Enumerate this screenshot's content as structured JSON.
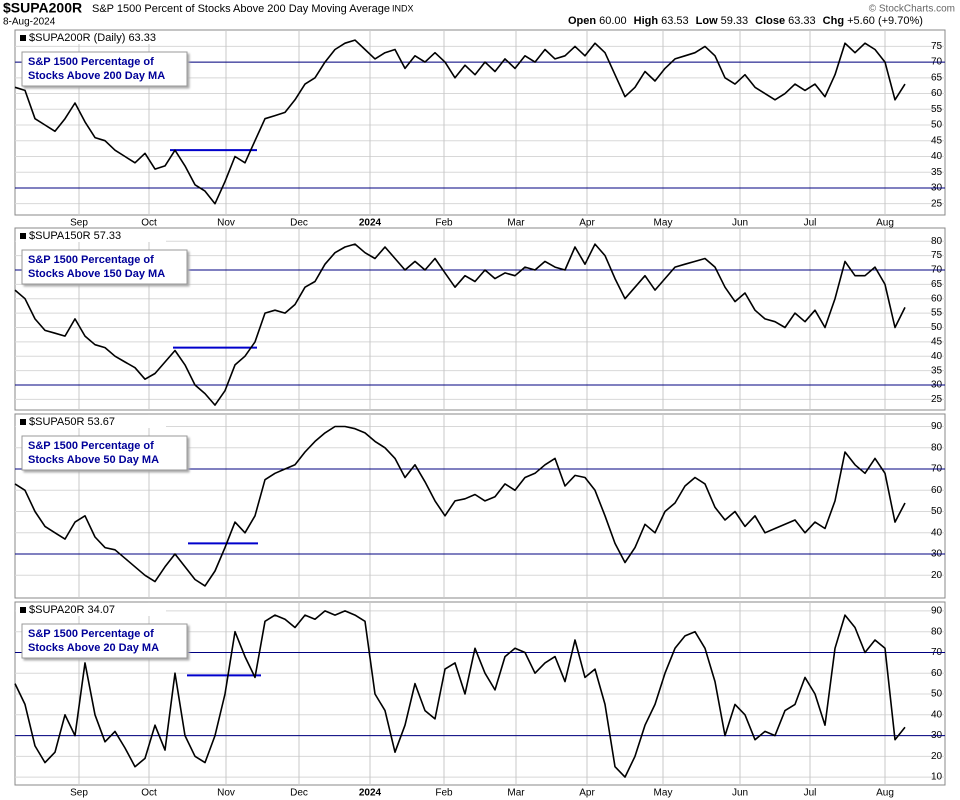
{
  "header": {
    "symbol": "$SUPA200R",
    "name": "S&P 1500 Percent of Stocks Above 200 Day Moving Average",
    "exchange": "INDX",
    "date": "8-Aug-2024",
    "quote": [
      {
        "label": "Open",
        "value": "60.00"
      },
      {
        "label": "High",
        "value": "63.53"
      },
      {
        "label": "Low",
        "value": "59.33"
      },
      {
        "label": "Close",
        "value": "63.33"
      },
      {
        "label": "Chg",
        "value": "+5.60 (+9.70%)"
      }
    ],
    "credit": "© StockCharts.com"
  },
  "chart_data": [
    {
      "type": "line",
      "label": "$SUPA200R (Daily) 63.33",
      "legend": [
        "S&P 1500 Percentage of",
        "Stocks Above 200 Day MA"
      ],
      "color": "#000000",
      "values": [
        62,
        61,
        52,
        50,
        48,
        52,
        57,
        51,
        46,
        45,
        42,
        40,
        38,
        41,
        36,
        37,
        42,
        37,
        31,
        29,
        25,
        32,
        40,
        38,
        45,
        52,
        53,
        54,
        58,
        63,
        65,
        70,
        74,
        76,
        77,
        74,
        71,
        73,
        74,
        68,
        72,
        70,
        73,
        70,
        65,
        69,
        66,
        70,
        67,
        71,
        68,
        72,
        70,
        74,
        71,
        72,
        75,
        72,
        76,
        73,
        66,
        59,
        62,
        67,
        64,
        68,
        71,
        72,
        73,
        75,
        72,
        65,
        63,
        66,
        62,
        60,
        58,
        60,
        63,
        61,
        63,
        59,
        66,
        76,
        73,
        76,
        74,
        70,
        58,
        63
      ],
      "xlim": [
        0,
        90
      ],
      "ylim": [
        21.4,
        80.2
      ],
      "yticks": [
        25,
        30,
        35,
        40,
        45,
        50,
        55,
        60,
        65,
        70,
        75
      ],
      "xticks": [
        {
          "value": 6.4,
          "label": "Sep"
        },
        {
          "value": 13.4,
          "label": "Oct"
        },
        {
          "value": 21.1,
          "label": "Nov"
        },
        {
          "value": 28.4,
          "label": "Dec"
        },
        {
          "value": 35.5,
          "label": "2024"
        },
        {
          "value": 42.9,
          "label": "Feb"
        },
        {
          "value": 50.1,
          "label": "Mar"
        },
        {
          "value": 57.2,
          "label": "Apr"
        },
        {
          "value": 64.8,
          "label": "May"
        },
        {
          "value": 72.5,
          "label": "Jun"
        },
        {
          "value": 79.5,
          "label": "Jul"
        },
        {
          "value": 87.0,
          "label": "Aug"
        }
      ],
      "xtick_labels": true,
      "reference_lines": [
        30,
        70
      ],
      "segment": {
        "y": 42,
        "x": [
          15.5,
          24.2
        ]
      },
      "grid": true
    },
    {
      "type": "line",
      "label": "$SUPA150R 57.33",
      "legend": [
        "S&P 1500 Percentage of",
        "Stocks Above 150 Day MA"
      ],
      "color": "#000000",
      "values": [
        63,
        60,
        53,
        49,
        48,
        47,
        53,
        47,
        44,
        43,
        40,
        38,
        36,
        32,
        34,
        38,
        42,
        37,
        30,
        27,
        23,
        28,
        37,
        40,
        45,
        55,
        56,
        55,
        58,
        64,
        66,
        72,
        76,
        78,
        79,
        76,
        74,
        78,
        74,
        70,
        73,
        70,
        74,
        69,
        64,
        68,
        66,
        70,
        67,
        69,
        68,
        71,
        70,
        73,
        71,
        70,
        78,
        72,
        79,
        75,
        67,
        60,
        64,
        68,
        63,
        67,
        71,
        72,
        73,
        74,
        71,
        64,
        59,
        62,
        56,
        53,
        52,
        50,
        55,
        52,
        56,
        50,
        60,
        73,
        68,
        68,
        71,
        65,
        50,
        57
      ],
      "xlim": [
        0,
        90
      ],
      "ylim": [
        21.3,
        84.6
      ],
      "yticks": [
        25,
        30,
        35,
        40,
        45,
        50,
        55,
        60,
        65,
        70,
        75,
        80
      ],
      "xticks": [
        {
          "value": 6.4,
          "label": "Sep"
        },
        {
          "value": 13.4,
          "label": "Oct"
        },
        {
          "value": 21.1,
          "label": "Nov"
        },
        {
          "value": 28.4,
          "label": "Dec"
        },
        {
          "value": 35.5,
          "label": "2024"
        },
        {
          "value": 42.9,
          "label": "Feb"
        },
        {
          "value": 50.1,
          "label": "Mar"
        },
        {
          "value": 57.2,
          "label": "Apr"
        },
        {
          "value": 64.8,
          "label": "May"
        },
        {
          "value": 72.5,
          "label": "Jun"
        },
        {
          "value": 79.5,
          "label": "Jul"
        },
        {
          "value": 87.0,
          "label": "Aug"
        }
      ],
      "xtick_labels": false,
      "reference_lines": [
        30,
        70
      ],
      "segment": {
        "y": 43,
        "x": [
          15.8,
          24.2
        ]
      },
      "grid": true
    },
    {
      "type": "line",
      "label": "$SUPA50R 53.67",
      "legend": [
        "S&P 1500 Percentage of",
        "Stocks Above 50 Day MA"
      ],
      "color": "#000000",
      "values": [
        63,
        60,
        50,
        43,
        40,
        37,
        45,
        48,
        38,
        33,
        32,
        28,
        24,
        20,
        17,
        24,
        30,
        24,
        18,
        15,
        22,
        33,
        45,
        40,
        48,
        65,
        68,
        70,
        72,
        78,
        83,
        87,
        90,
        90,
        89,
        87,
        83,
        80,
        75,
        66,
        72,
        64,
        55,
        48,
        55,
        56,
        58,
        55,
        57,
        63,
        60,
        66,
        68,
        72,
        75,
        62,
        67,
        66,
        60,
        48,
        35,
        26,
        33,
        44,
        40,
        50,
        54,
        62,
        66,
        63,
        52,
        46,
        50,
        43,
        48,
        40,
        42,
        44,
        46,
        40,
        45,
        42,
        55,
        78,
        72,
        68,
        75,
        68,
        45,
        54
      ],
      "xlim": [
        0,
        90
      ],
      "ylim": [
        9.3,
        95.9
      ],
      "yticks": [
        20,
        30,
        40,
        50,
        60,
        70,
        80,
        90
      ],
      "xticks": [
        {
          "value": 6.4,
          "label": "Sep"
        },
        {
          "value": 13.4,
          "label": "Oct"
        },
        {
          "value": 21.1,
          "label": "Nov"
        },
        {
          "value": 28.4,
          "label": "Dec"
        },
        {
          "value": 35.5,
          "label": "2024"
        },
        {
          "value": 42.9,
          "label": "Feb"
        },
        {
          "value": 50.1,
          "label": "Mar"
        },
        {
          "value": 57.2,
          "label": "Apr"
        },
        {
          "value": 64.8,
          "label": "May"
        },
        {
          "value": 72.5,
          "label": "Jun"
        },
        {
          "value": 79.5,
          "label": "Jul"
        },
        {
          "value": 87.0,
          "label": "Aug"
        }
      ],
      "xtick_labels": false,
      "reference_lines": [
        30,
        70
      ],
      "segment": {
        "y": 35,
        "x": [
          17.3,
          24.3
        ]
      },
      "grid": true
    },
    {
      "type": "line",
      "label": "$SUPA20R 34.07",
      "legend": [
        "S&P 1500 Percentage of",
        "Stocks Above 20 Day MA"
      ],
      "color": "#000000",
      "values": [
        55,
        45,
        25,
        17,
        22,
        40,
        30,
        65,
        40,
        27,
        32,
        24,
        15,
        19,
        35,
        23,
        60,
        30,
        20,
        17,
        30,
        50,
        80,
        68,
        58,
        85,
        88,
        86,
        82,
        88,
        86,
        90,
        88,
        90,
        88,
        85,
        50,
        42,
        22,
        35,
        55,
        42,
        38,
        62,
        65,
        50,
        72,
        60,
        52,
        68,
        72,
        70,
        60,
        65,
        68,
        56,
        76,
        58,
        62,
        45,
        15,
        10,
        20,
        35,
        45,
        60,
        72,
        78,
        80,
        72,
        56,
        30,
        45,
        40,
        28,
        32,
        30,
        42,
        45,
        58,
        50,
        35,
        72,
        88,
        82,
        70,
        76,
        72,
        28,
        34
      ],
      "xlim": [
        0,
        90
      ],
      "ylim": [
        6.2,
        94.3
      ],
      "yticks": [
        10,
        20,
        30,
        40,
        50,
        60,
        70,
        80,
        90
      ],
      "xticks": [
        {
          "value": 6.4,
          "label": "Sep"
        },
        {
          "value": 13.4,
          "label": "Oct"
        },
        {
          "value": 21.1,
          "label": "Nov"
        },
        {
          "value": 28.4,
          "label": "Dec"
        },
        {
          "value": 35.5,
          "label": "2024"
        },
        {
          "value": 42.9,
          "label": "Feb"
        },
        {
          "value": 50.1,
          "label": "Mar"
        },
        {
          "value": 57.2,
          "label": "Apr"
        },
        {
          "value": 64.8,
          "label": "May"
        },
        {
          "value": 72.5,
          "label": "Jun"
        },
        {
          "value": 79.5,
          "label": "Jul"
        },
        {
          "value": 87.0,
          "label": "Aug"
        }
      ],
      "xtick_labels": true,
      "reference_lines": [
        30,
        70
      ],
      "segment": {
        "y": 59,
        "x": [
          17.2,
          24.6
        ]
      },
      "grid": true
    }
  ]
}
